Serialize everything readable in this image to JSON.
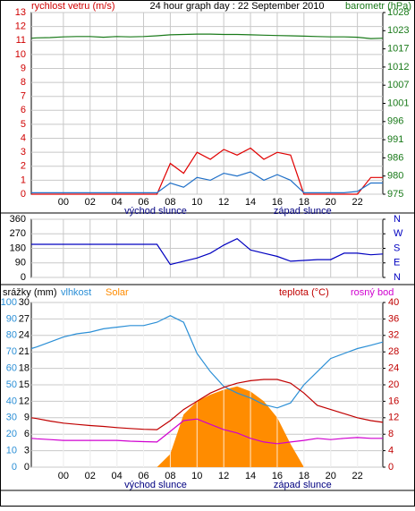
{
  "chart_data": [
    {
      "type": "line",
      "title": "24 hour graph day : 22 September 2010",
      "ylabel": "rychlost vetru (m/s)",
      "y2label": "barometr (hPa)",
      "x": [
        -2.4,
        -2,
        -1,
        0,
        1,
        2,
        3,
        4,
        5,
        6,
        7,
        8,
        9,
        10,
        11,
        12,
        13,
        14,
        15,
        16,
        17,
        18,
        19,
        20,
        21,
        22,
        23,
        23.9
      ],
      "xlim": [
        -2.4,
        23.9
      ],
      "xticks": [
        {
          "value": 0,
          "label": "00"
        },
        {
          "value": 2,
          "label": "02"
        },
        {
          "value": 4,
          "label": "04"
        },
        {
          "value": 6,
          "label": "06"
        },
        {
          "value": 8,
          "label": "08"
        },
        10,
        12,
        14,
        16,
        18,
        20,
        22
      ],
      "ylim": [
        0,
        13
      ],
      "yticks": [
        0,
        1,
        2,
        3,
        4,
        5,
        6,
        7,
        8,
        9,
        10,
        11,
        12,
        13
      ],
      "y2lim": [
        975,
        1028
      ],
      "y2ticks": [
        {
          "value": 975,
          "label": "975"
        },
        {
          "value": 980.3,
          "label": "980"
        },
        {
          "value": 985.6,
          "label": "986"
        },
        {
          "value": 990.9,
          "label": "991"
        },
        {
          "value": 996.2,
          "label": "996"
        },
        {
          "value": 1001.5,
          "label": "1001"
        },
        {
          "value": 1006.8,
          "label": "1007"
        },
        {
          "value": 1012.1,
          "label": "1012"
        },
        {
          "value": 1017.4,
          "label": "1017"
        },
        {
          "value": 1022.7,
          "label": "1023"
        },
        {
          "value": 1028,
          "label": "1028"
        }
      ],
      "ylabel_color": "#d00000",
      "y2label_color": "#1a7a1a",
      "grid": true,
      "annotations": [
        {
          "text": "východ slunce",
          "x": 6.9
        },
        {
          "text": "západ slunce",
          "x": 17.9
        }
      ],
      "series": [
        {
          "color": "#e00000",
          "axis": "y",
          "values": [
            0,
            0,
            0,
            0,
            0,
            0,
            0,
            0,
            0,
            0,
            0,
            2.2,
            1.5,
            3.0,
            2.5,
            3.2,
            2.8,
            3.3,
            2.5,
            3.0,
            2.8,
            0,
            0,
            0,
            0,
            0,
            1.2,
            1.2
          ]
        },
        {
          "color": "#2070c8",
          "axis": "y",
          "values": [
            0.1,
            0.1,
            0.1,
            0.1,
            0.1,
            0.1,
            0.1,
            0.1,
            0.1,
            0.1,
            0.1,
            0.8,
            0.5,
            1.2,
            1.0,
            1.5,
            1.3,
            1.6,
            1.0,
            1.4,
            1.0,
            0.1,
            0.1,
            0.1,
            0.1,
            0.2,
            0.8,
            0.8
          ]
        },
        {
          "color": "#1a7a1a",
          "axis": "y2",
          "values": [
            1020.5,
            1020.6,
            1020.7,
            1020.9,
            1021.0,
            1021.0,
            1020.8,
            1021.0,
            1020.9,
            1021.0,
            1021.2,
            1021.5,
            1021.6,
            1021.7,
            1021.7,
            1021.6,
            1021.6,
            1021.5,
            1021.4,
            1021.3,
            1021.2,
            1021.1,
            1021.0,
            1020.9,
            1020.9,
            1020.8,
            1020.4,
            1020.5
          ]
        }
      ]
    },
    {
      "type": "line",
      "x": [
        -2.4,
        -2,
        -1,
        0,
        1,
        2,
        3,
        4,
        5,
        6,
        7,
        8,
        9,
        10,
        11,
        12,
        13,
        14,
        15,
        16,
        17,
        18,
        19,
        20,
        21,
        22,
        23,
        23.9
      ],
      "xlim": [
        -2.4,
        23.9
      ],
      "xticks": [
        0,
        2,
        4,
        6,
        8,
        10,
        12,
        14,
        16,
        18,
        20,
        22
      ],
      "ylim": [
        0,
        360
      ],
      "yticks": [
        0,
        90,
        180,
        270,
        360
      ],
      "y2lim": [
        0,
        360
      ],
      "y2ticks": [
        {
          "value": 360,
          "label": "N"
        },
        {
          "value": 270,
          "label": "W"
        },
        {
          "value": 180,
          "label": "S"
        },
        {
          "value": 90,
          "label": "E"
        },
        {
          "value": 0,
          "label": "N"
        }
      ],
      "y2label_color": "#0000c0",
      "grid": true,
      "series": [
        {
          "color": "#0000c0",
          "axis": "y",
          "values": [
            205,
            205,
            205,
            205,
            205,
            205,
            205,
            205,
            205,
            205,
            205,
            80,
            100,
            120,
            150,
            200,
            240,
            170,
            150,
            130,
            100,
            105,
            110,
            110,
            150,
            150,
            140,
            145
          ]
        }
      ]
    },
    {
      "type": "line",
      "y3label": "srážky (mm)",
      "x": [
        -2.4,
        -2,
        -1,
        0,
        1,
        2,
        3,
        4,
        5,
        6,
        7,
        8,
        9,
        10,
        11,
        12,
        13,
        14,
        15,
        16,
        17,
        18,
        19,
        20,
        21,
        22,
        23,
        23.9
      ],
      "xlim": [
        -2.4,
        23.9
      ],
      "xticks": [
        {
          "value": 0,
          "label": "00"
        },
        {
          "value": 2,
          "label": "02"
        },
        {
          "value": 4,
          "label": "04"
        },
        {
          "value": 6,
          "label": "06"
        },
        {
          "value": 8,
          "label": "08"
        },
        10,
        12,
        14,
        16,
        18,
        20,
        22
      ],
      "ylim": [
        0,
        100
      ],
      "yticks": [
        0,
        10,
        20,
        30,
        40,
        50,
        60,
        70,
        80,
        90,
        100
      ],
      "y3lim": [
        0,
        30
      ],
      "y3ticks": [
        0,
        3,
        6,
        9,
        12,
        15,
        18,
        21,
        24,
        27,
        30
      ],
      "y2lim": [
        0,
        40
      ],
      "y2ticks": [
        0,
        4,
        8,
        12,
        16,
        20,
        24,
        28,
        32,
        36,
        40
      ],
      "ylabel_color": "#2b8fd6",
      "y2label_color": "#c00000",
      "grid": true,
      "annotations": [
        {
          "text": "východ slunce",
          "x": 6.9
        },
        {
          "text": "západ slunce",
          "x": 17.9
        }
      ],
      "series": [
        {
          "name": "Solar",
          "kind": "area",
          "color": "#ff8c00",
          "axis": "y",
          "values": [
            0,
            0,
            0,
            0,
            0,
            0,
            0,
            0,
            0,
            0,
            0,
            8,
            32,
            40,
            44,
            47,
            49,
            46,
            40,
            30,
            14,
            0,
            0,
            0,
            0,
            0,
            0,
            0
          ]
        },
        {
          "name": "vlhkost",
          "color": "#2b8fd6",
          "axis": "y",
          "values": [
            72,
            73,
            76,
            79,
            81,
            82,
            84,
            85,
            86,
            86,
            88,
            92,
            88,
            69,
            58,
            49,
            45,
            42,
            38,
            36,
            39,
            50,
            58,
            66,
            69,
            72,
            74,
            76
          ]
        },
        {
          "name": "teplota (°C)",
          "color": "#c00000",
          "axis": "y2",
          "values": [
            12,
            11.8,
            11.2,
            10.7,
            10.4,
            10.1,
            9.9,
            9.6,
            9.4,
            9.2,
            9.1,
            11.3,
            14,
            16,
            18,
            19.4,
            20.4,
            21,
            21.3,
            21.3,
            20.4,
            18,
            15,
            14,
            13,
            12,
            11.3,
            10.9
          ]
        },
        {
          "name": "rosný bod",
          "color": "#d000d0",
          "axis": "y2",
          "values": [
            7,
            6.9,
            6.7,
            6.5,
            6.5,
            6.5,
            6.5,
            6.5,
            6.3,
            6.2,
            6.1,
            8.7,
            11.3,
            11.7,
            10.4,
            9.1,
            8.3,
            7,
            6.1,
            5.7,
            6.1,
            6.5,
            7,
            6.7,
            7,
            7.2,
            7,
            7
          ]
        }
      ]
    }
  ]
}
